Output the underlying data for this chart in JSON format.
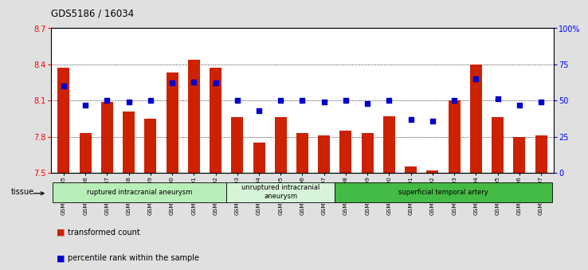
{
  "title": "GDS5186 / 16034",
  "categories": [
    "GSM1306885",
    "GSM1306886",
    "GSM1306887",
    "GSM1306888",
    "GSM1306889",
    "GSM1306890",
    "GSM1306891",
    "GSM1306892",
    "GSM1306893",
    "GSM1306894",
    "GSM1306895",
    "GSM1306896",
    "GSM1306897",
    "GSM1306898",
    "GSM1306899",
    "GSM1306900",
    "GSM1306901",
    "GSM1306902",
    "GSM1306903",
    "GSM1306904",
    "GSM1306905",
    "GSM1306906",
    "GSM1306907"
  ],
  "bar_values": [
    8.37,
    7.83,
    8.09,
    8.01,
    7.95,
    8.33,
    8.44,
    8.37,
    7.96,
    7.75,
    7.96,
    7.83,
    7.81,
    7.85,
    7.83,
    7.97,
    7.55,
    7.52,
    8.1,
    8.4,
    7.96,
    7.8,
    7.81
  ],
  "percentile_values": [
    60,
    47,
    50,
    49,
    50,
    62,
    63,
    62,
    50,
    43,
    50,
    50,
    49,
    50,
    48,
    50,
    37,
    36,
    50,
    65,
    51,
    47,
    49
  ],
  "bar_color": "#cc2200",
  "percentile_color": "#0000cc",
  "ylim_left": [
    7.5,
    8.7
  ],
  "ylim_right": [
    0,
    100
  ],
  "yticks_left": [
    7.5,
    7.8,
    8.1,
    8.4,
    8.7
  ],
  "yticks_right": [
    0,
    25,
    50,
    75,
    100
  ],
  "ytick_labels_right": [
    "0",
    "25",
    "50",
    "75",
    "100%"
  ],
  "grid_values": [
    7.8,
    8.1,
    8.4
  ],
  "groups": [
    {
      "label": "ruptured intracranial aneurysm",
      "start": 0,
      "end": 7,
      "color": "#b8eeb8"
    },
    {
      "label": "unruptured intracranial\naneurysm",
      "start": 8,
      "end": 12,
      "color": "#d8f4d8"
    },
    {
      "label": "superficial temporal artery",
      "start": 13,
      "end": 22,
      "color": "#44bb44"
    }
  ],
  "tissue_label": "tissue",
  "legend_items": [
    {
      "label": "transformed count",
      "color": "#cc2200"
    },
    {
      "label": "percentile rank within the sample",
      "color": "#0000cc"
    }
  ],
  "bg_color": "#e0e0e0",
  "plot_bg": "#ffffff",
  "fig_width": 7.14,
  "fig_height": 3.63
}
